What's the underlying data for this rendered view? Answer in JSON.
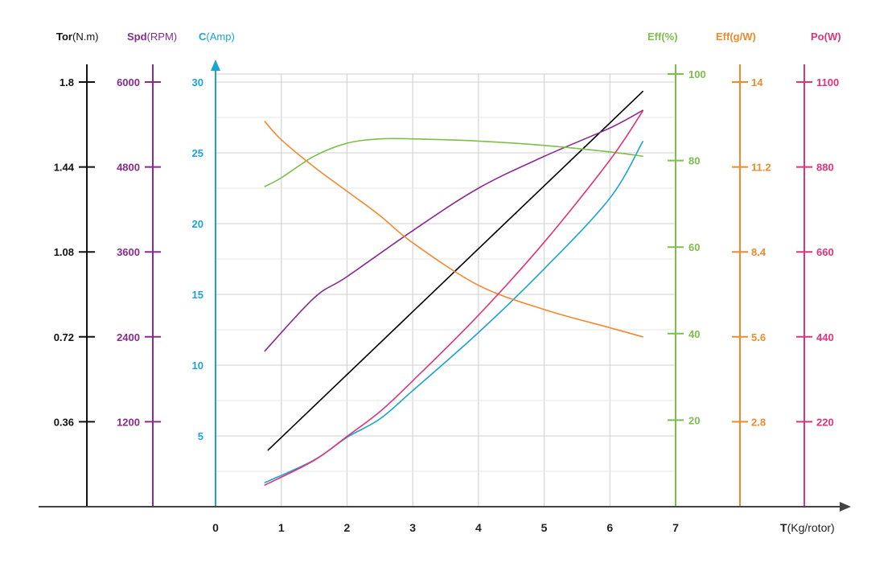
{
  "chart_data": {
    "type": "line",
    "x": {
      "label_main": "T",
      "label_unit": "(Kg/rotor)",
      "ticks": [
        "0",
        "1",
        "2",
        "3",
        "4",
        "5",
        "6",
        "7"
      ],
      "range": [
        0,
        7
      ]
    },
    "axes": [
      {
        "id": "tor",
        "name": "Tor",
        "unit": "(N.m)",
        "color": "#111111",
        "ticks": [
          "0.36",
          "0.72",
          "1.08",
          "1.44",
          "1.8"
        ],
        "range": [
          0,
          1.8
        ]
      },
      {
        "id": "spd",
        "name": "Spd",
        "unit": "(RPM)",
        "color": "#8a2a91",
        "ticks": [
          "1200",
          "2400",
          "3600",
          "4800",
          "6000"
        ],
        "range": [
          0,
          6000
        ]
      },
      {
        "id": "cur",
        "name": "C",
        "unit": "(Amp)",
        "color": "#1ba3d6",
        "ticks": [
          "5",
          "10",
          "15",
          "20",
          "25",
          "30"
        ],
        "range": [
          0,
          30
        ]
      },
      {
        "id": "effp",
        "name": "Eff",
        "unit": "(%)",
        "color": "#7cbf4a",
        "ticks": [
          "20",
          "40",
          "60",
          "80",
          "100"
        ],
        "range": [
          0,
          100
        ]
      },
      {
        "id": "effgw",
        "name": "Eff",
        "unit": "(g/W)",
        "color": "#f08a2c",
        "ticks": [
          "2.8",
          "5.6",
          "8.4",
          "11.2",
          "14"
        ],
        "range": [
          0,
          14
        ]
      },
      {
        "id": "po",
        "name": "Po",
        "unit": "(W)",
        "color": "#e0337a",
        "ticks": [
          "220",
          "440",
          "660",
          "880",
          "1100"
        ],
        "range": [
          0,
          1100
        ]
      }
    ],
    "series": [
      {
        "axis": "tor",
        "color": "#000000",
        "points": [
          [
            0.8,
            0.24
          ],
          [
            6.5,
            1.76
          ]
        ]
      },
      {
        "axis": "spd",
        "color": "#8a2a91",
        "points": [
          [
            0.75,
            2200
          ],
          [
            1.5,
            2950
          ],
          [
            2,
            3250
          ],
          [
            3,
            3900
          ],
          [
            4,
            4500
          ],
          [
            5,
            4950
          ],
          [
            6,
            5350
          ],
          [
            6.5,
            5600
          ]
        ]
      },
      {
        "axis": "cur",
        "color": "#1ba3d6",
        "points": [
          [
            0.75,
            1.7
          ],
          [
            1.5,
            3.3
          ],
          [
            2,
            4.9
          ],
          [
            2.5,
            6.2
          ],
          [
            3,
            8.2
          ],
          [
            4,
            12.3
          ],
          [
            5,
            16.8
          ],
          [
            6,
            21.8
          ],
          [
            6.5,
            25.8
          ]
        ]
      },
      {
        "axis": "effp",
        "color": "#7cbf4a",
        "points": [
          [
            0.75,
            74
          ],
          [
            1,
            76
          ],
          [
            1.5,
            81
          ],
          [
            2,
            84
          ],
          [
            2.5,
            85
          ],
          [
            3,
            85
          ],
          [
            4,
            84.5
          ],
          [
            5,
            83.5
          ],
          [
            6,
            82
          ],
          [
            6.5,
            81
          ]
        ]
      },
      {
        "axis": "effgw",
        "color": "#f08a2c",
        "points": [
          [
            0.75,
            12.7
          ],
          [
            1,
            12.1
          ],
          [
            1.5,
            11.2
          ],
          [
            2,
            10.4
          ],
          [
            2.5,
            9.6
          ],
          [
            3,
            8.7
          ],
          [
            4,
            7.3
          ],
          [
            5,
            6.5
          ],
          [
            6,
            5.9
          ],
          [
            6.5,
            5.6
          ]
        ]
      },
      {
        "axis": "po",
        "color": "#e0337a",
        "points": [
          [
            0.75,
            56
          ],
          [
            1.5,
            120
          ],
          [
            2,
            182
          ],
          [
            2.5,
            246
          ],
          [
            3,
            326
          ],
          [
            4,
            496
          ],
          [
            5,
            685
          ],
          [
            6,
            898
          ],
          [
            6.5,
            1025
          ]
        ]
      }
    ]
  }
}
